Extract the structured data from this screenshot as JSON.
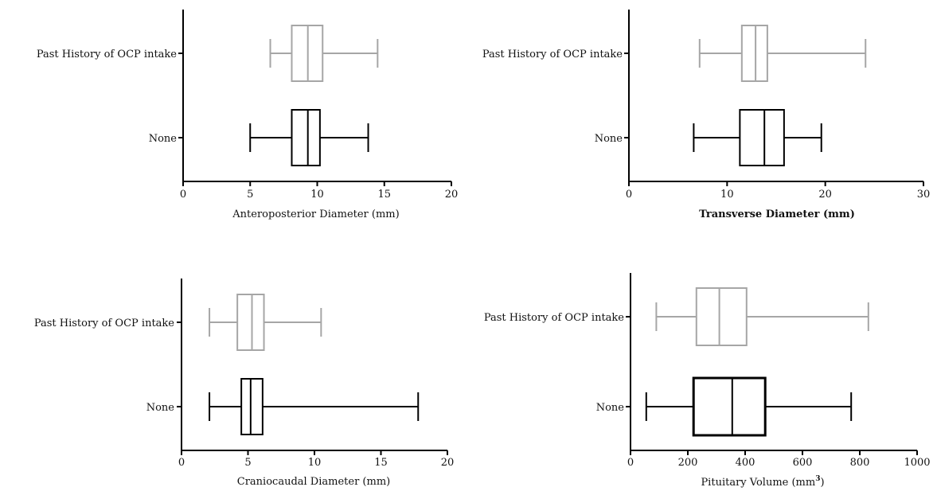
{
  "colors": {
    "past": "#a6a6a6",
    "none": "#000000",
    "axis": "#000000"
  },
  "chart_data": [
    {
      "type": "boxplot",
      "xlabel": "Anteroposterior Diameter (mm)",
      "xlim": [
        0,
        20
      ],
      "xticks": [
        0,
        5,
        10,
        15,
        20
      ],
      "series": [
        {
          "name": "Past History of OCP intake",
          "min": 6.5,
          "q1": 8.1,
          "median": 9.3,
          "q3": 10.4,
          "max": 14.5,
          "color": "#a6a6a6"
        },
        {
          "name": "None",
          "min": 5.0,
          "q1": 8.1,
          "median": 9.3,
          "q3": 10.2,
          "max": 13.8,
          "color": "#000000"
        }
      ]
    },
    {
      "type": "boxplot",
      "xlabel": "Transverse Diameter (mm)",
      "xlim": [
        0,
        30
      ],
      "xticks": [
        0,
        10,
        20,
        30
      ],
      "series": [
        {
          "name": "Past History of OCP intake",
          "min": 7.2,
          "q1": 11.5,
          "median": 12.9,
          "q3": 14.1,
          "max": 24.1,
          "color": "#a6a6a6"
        },
        {
          "name": "None",
          "min": 6.6,
          "q1": 11.3,
          "median": 13.8,
          "q3": 15.8,
          "max": 19.6,
          "color": "#000000"
        }
      ]
    },
    {
      "type": "boxplot",
      "xlabel": "Craniocaudal Diameter (mm)",
      "xlim": [
        0,
        20
      ],
      "xticks": [
        0,
        5,
        10,
        15,
        20
      ],
      "series": [
        {
          "name": "Past History of OCP intake",
          "min": 2.1,
          "q1": 4.2,
          "median": 5.3,
          "q3": 6.2,
          "max": 10.5,
          "color": "#a6a6a6"
        },
        {
          "name": "None",
          "min": 2.1,
          "q1": 4.5,
          "median": 5.2,
          "q3": 6.1,
          "max": 17.8,
          "color": "#000000"
        }
      ]
    },
    {
      "type": "boxplot",
      "xlabel": "Pituitary Volume (mm",
      "xlabel_sup": "3",
      "xlabel_end": ")",
      "xlim": [
        0,
        1000
      ],
      "xticks": [
        0,
        200,
        400,
        600,
        800,
        1000
      ],
      "series": [
        {
          "name": "Past History of OCP intake",
          "min": 90,
          "q1": 230,
          "median": 310,
          "q3": 405,
          "max": 830,
          "color": "#a6a6a6"
        },
        {
          "name": "None",
          "min": 55,
          "q1": 220,
          "median": 355,
          "q3": 470,
          "max": 770,
          "color": "#000000"
        }
      ]
    }
  ]
}
